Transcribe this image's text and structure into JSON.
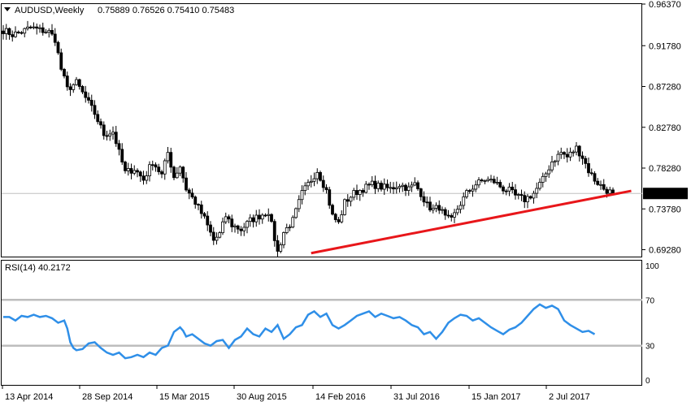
{
  "header": {
    "symbol": "AUDUSD,Weekly",
    "ohlc": "0.75889 0.76526 0.75410 0.75483",
    "menu_icon": "triangle-down-icon"
  },
  "rsi_panel": {
    "label": "RSI(14) 40.2172"
  },
  "colors": {
    "candle": "#000000",
    "trendline": "#e8161a",
    "rsi_line": "#2f8fe8",
    "level_lines": "#bdbdbd",
    "price_marker_bg": "#000000",
    "price_marker_text": "#ffffff"
  },
  "chart_data": [
    {
      "type": "candlestick",
      "title": "",
      "ylim": [
        0.6852,
        0.9637
      ],
      "y_ticks": [
        "0.96370",
        "0.91780",
        "0.87280",
        "0.82780",
        "0.78280",
        "0.73780",
        "0.69280"
      ],
      "current_price": 0.75483,
      "current_price_label": "0.75483",
      "x_ticks": [
        "13 Apr 2014",
        "28 Sep 2014",
        "15 Mar 2015",
        "30 Aug 2015",
        "14 Feb 2016",
        "31 Jul 2016",
        "15 Jan 2017",
        "2 Jul 2017"
      ],
      "close_path": [
        [
          0,
          0.935
        ],
        [
          3,
          0.93
        ],
        [
          6,
          0.933
        ],
        [
          9,
          0.938
        ],
        [
          12,
          0.935
        ],
        [
          15,
          0.933
        ],
        [
          17,
          0.925
        ],
        [
          19,
          0.892
        ],
        [
          21,
          0.87
        ],
        [
          24,
          0.877
        ],
        [
          27,
          0.86
        ],
        [
          30,
          0.843
        ],
        [
          33,
          0.82
        ],
        [
          36,
          0.823
        ],
        [
          38,
          0.8
        ],
        [
          40,
          0.778
        ],
        [
          43,
          0.782
        ],
        [
          46,
          0.77
        ],
        [
          49,
          0.79
        ],
        [
          52,
          0.775
        ],
        [
          54,
          0.8
        ],
        [
          56,
          0.773
        ],
        [
          58,
          0.785
        ],
        [
          60,
          0.76
        ],
        [
          63,
          0.745
        ],
        [
          66,
          0.727
        ],
        [
          69,
          0.703
        ],
        [
          71,
          0.71
        ],
        [
          73,
          0.73
        ],
        [
          75,
          0.72
        ],
        [
          78,
          0.715
        ],
        [
          81,
          0.725
        ],
        [
          84,
          0.73
        ],
        [
          87,
          0.735
        ],
        [
          90,
          0.69
        ],
        [
          92,
          0.712
        ],
        [
          95,
          0.725
        ],
        [
          98,
          0.755
        ],
        [
          101,
          0.77
        ],
        [
          103,
          0.78
        ],
        [
          106,
          0.758
        ],
        [
          108,
          0.73
        ],
        [
          110,
          0.722
        ],
        [
          112,
          0.745
        ],
        [
          115,
          0.755
        ],
        [
          118,
          0.76
        ],
        [
          121,
          0.765
        ],
        [
          124,
          0.762
        ],
        [
          127,
          0.76
        ],
        [
          130,
          0.765
        ],
        [
          133,
          0.76
        ],
        [
          135,
          0.765
        ],
        [
          137,
          0.755
        ],
        [
          139,
          0.742
        ],
        [
          141,
          0.737
        ],
        [
          143,
          0.74
        ],
        [
          145,
          0.728
        ],
        [
          147,
          0.725
        ],
        [
          149,
          0.738
        ],
        [
          152,
          0.755
        ],
        [
          155,
          0.765
        ],
        [
          158,
          0.77
        ],
        [
          161,
          0.768
        ],
        [
          164,
          0.76
        ],
        [
          166,
          0.758
        ],
        [
          168,
          0.752
        ],
        [
          171,
          0.748
        ],
        [
          174,
          0.755
        ],
        [
          177,
          0.77
        ],
        [
          180,
          0.79
        ],
        [
          183,
          0.8
        ],
        [
          185,
          0.795
        ],
        [
          188,
          0.805
        ],
        [
          190,
          0.795
        ],
        [
          192,
          0.78
        ],
        [
          194,
          0.77
        ],
        [
          197,
          0.76
        ],
        [
          200,
          0.7548
        ]
      ],
      "trendline": {
        "from": [
          101,
          0.689
        ],
        "to": [
          206,
          0.7577
        ]
      }
    },
    {
      "type": "line",
      "title": "",
      "ylim": [
        0,
        100
      ],
      "y_ticks": [
        "100",
        "70",
        "30",
        "0"
      ],
      "levels": [
        70,
        30
      ],
      "rsi": [
        [
          0,
          55
        ],
        [
          2,
          55
        ],
        [
          4,
          52
        ],
        [
          6,
          56
        ],
        [
          8,
          55
        ],
        [
          10,
          57
        ],
        [
          12,
          55
        ],
        [
          14,
          56
        ],
        [
          16,
          54
        ],
        [
          18,
          50
        ],
        [
          20,
          52
        ],
        [
          21,
          45
        ],
        [
          22,
          33
        ],
        [
          23,
          28
        ],
        [
          24,
          26
        ],
        [
          26,
          27
        ],
        [
          28,
          32
        ],
        [
          30,
          33
        ],
        [
          32,
          28
        ],
        [
          34,
          24
        ],
        [
          36,
          22
        ],
        [
          38,
          24
        ],
        [
          40,
          19
        ],
        [
          42,
          20
        ],
        [
          44,
          22
        ],
        [
          46,
          20
        ],
        [
          48,
          24
        ],
        [
          50,
          22
        ],
        [
          52,
          28
        ],
        [
          54,
          30
        ],
        [
          56,
          42
        ],
        [
          58,
          46
        ],
        [
          59,
          43
        ],
        [
          60,
          38
        ],
        [
          62,
          40
        ],
        [
          64,
          36
        ],
        [
          66,
          32
        ],
        [
          68,
          30
        ],
        [
          70,
          34
        ],
        [
          72,
          35
        ],
        [
          74,
          28
        ],
        [
          76,
          35
        ],
        [
          78,
          38
        ],
        [
          80,
          45
        ],
        [
          82,
          40
        ],
        [
          84,
          38
        ],
        [
          86,
          45
        ],
        [
          88,
          42
        ],
        [
          90,
          48
        ],
        [
          92,
          36
        ],
        [
          94,
          40
        ],
        [
          96,
          46
        ],
        [
          98,
          48
        ],
        [
          100,
          57
        ],
        [
          102,
          60
        ],
        [
          104,
          55
        ],
        [
          106,
          58
        ],
        [
          108,
          48
        ],
        [
          110,
          45
        ],
        [
          112,
          48
        ],
        [
          114,
          52
        ],
        [
          116,
          56
        ],
        [
          118,
          58
        ],
        [
          120,
          60
        ],
        [
          122,
          55
        ],
        [
          124,
          58
        ],
        [
          126,
          56
        ],
        [
          128,
          54
        ],
        [
          130,
          55
        ],
        [
          132,
          52
        ],
        [
          134,
          48
        ],
        [
          136,
          46
        ],
        [
          138,
          40
        ],
        [
          140,
          42
        ],
        [
          142,
          36
        ],
        [
          144,
          42
        ],
        [
          146,
          50
        ],
        [
          148,
          54
        ],
        [
          150,
          57
        ],
        [
          152,
          56
        ],
        [
          154,
          52
        ],
        [
          156,
          54
        ],
        [
          158,
          50
        ],
        [
          160,
          46
        ],
        [
          162,
          43
        ],
        [
          164,
          40
        ],
        [
          166,
          44
        ],
        [
          168,
          46
        ],
        [
          170,
          50
        ],
        [
          172,
          56
        ],
        [
          174,
          62
        ],
        [
          176,
          66
        ],
        [
          178,
          63
        ],
        [
          180,
          65
        ],
        [
          182,
          62
        ],
        [
          184,
          52
        ],
        [
          186,
          48
        ],
        [
          188,
          45
        ],
        [
          190,
          42
        ],
        [
          192,
          43
        ],
        [
          194,
          40
        ]
      ]
    }
  ]
}
